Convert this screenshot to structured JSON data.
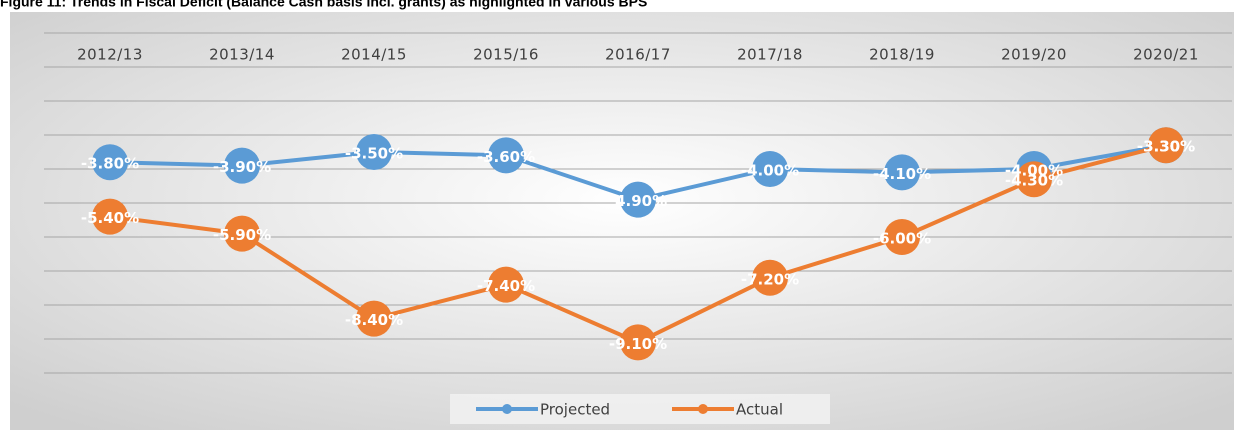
{
  "chart_data": {
    "type": "line",
    "title": "Figure 11: Trends in Fiscal Deficit (Balance Cash basis incl. grants) as highlighted in various BPS",
    "categories": [
      "2012/13",
      "2013/14",
      "2014/15",
      "2015/16",
      "2016/17",
      "2017/18",
      "2018/19",
      "2019/20",
      "2020/21"
    ],
    "series": [
      {
        "name": "Projected",
        "color": "#5b9bd5",
        "values": [
          -3.8,
          -3.9,
          -3.5,
          -3.6,
          -4.9,
          -4.0,
          -4.1,
          -4.0,
          -3.3
        ],
        "value_labels": [
          "-3.80%",
          "-3.90%",
          "-3.50%",
          "-3.60%",
          "-4.90%",
          "-4.00%",
          "-4.10%",
          "-4.00%",
          "-3.30%"
        ]
      },
      {
        "name": "Actual",
        "color": "#ed7d31",
        "values": [
          -5.4,
          -5.9,
          -8.4,
          -7.4,
          -9.1,
          -7.2,
          -6.0,
          -4.3,
          -3.3
        ],
        "value_labels": [
          "-5.40%",
          "-5.90%",
          "-8.40%",
          "-7.40%",
          "-9.10%",
          "-7.20%",
          "-6.00%",
          "-4.30%",
          "-3.30%"
        ]
      }
    ],
    "ylim": [
      -10,
      0
    ],
    "yticks": [
      -10,
      -9,
      -8,
      -7,
      -6,
      -5,
      -4,
      -3,
      -2,
      -1,
      0
    ],
    "grid": true,
    "legend": "bottom"
  }
}
